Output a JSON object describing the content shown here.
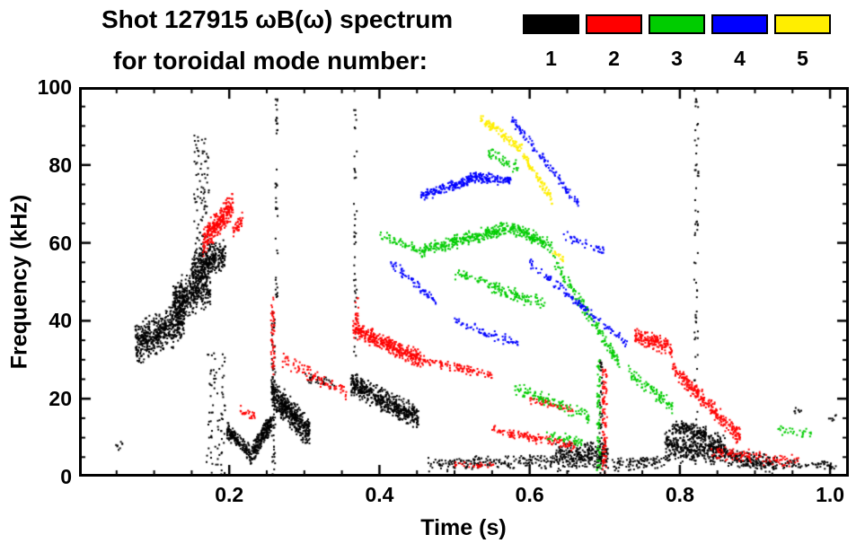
{
  "title": {
    "line1": "Shot 127915 ωB(ω) spectrum",
    "line2": "for toroidal mode number:"
  },
  "legend": [
    {
      "label": "1",
      "color": "#000000"
    },
    {
      "label": "2",
      "color": "#ff0000"
    },
    {
      "label": "3",
      "color": "#00cc00"
    },
    {
      "label": "4",
      "color": "#0000ff"
    },
    {
      "label": "5",
      "color": "#ffee00"
    }
  ],
  "chart_data": {
    "type": "scatter",
    "title": "Shot 127915 ωB(ω) spectrum for toroidal mode number: 1-5",
    "xlabel": "Time (s)",
    "ylabel": "Frequency (kHz)",
    "xlim": [
      0.0,
      1.025
    ],
    "ylim": [
      0,
      100
    ],
    "xticks": [
      0.2,
      0.4,
      0.6,
      0.8,
      1.0
    ],
    "xtick_labels": [
      "0.2",
      "0.4",
      "0.6",
      "0.8",
      "1.0"
    ],
    "yticks": [
      0,
      20,
      40,
      60,
      80,
      100
    ],
    "ytick_labels": [
      "0",
      "20",
      "40",
      "60",
      "80",
      "100"
    ],
    "minor_tick_x": 0.05,
    "minor_tick_y": 5,
    "grid": false,
    "legend_position": "top-right",
    "series": [
      {
        "name": "toroidal mode 1",
        "toroidal_mode_number": 1,
        "color": "#000000",
        "clusters": [
          {
            "shape": "band",
            "t0": 0.075,
            "t1": 0.14,
            "f0": 34,
            "f1": 40,
            "sf": 12,
            "n": 520
          },
          {
            "shape": "band",
            "t0": 0.125,
            "t1": 0.175,
            "f0": 44,
            "f1": 50,
            "sf": 13,
            "n": 480
          },
          {
            "shape": "band",
            "t0": 0.15,
            "t1": 0.195,
            "f0": 54,
            "f1": 57,
            "sf": 9,
            "n": 300
          },
          {
            "shape": "vline",
            "t0": 0.163,
            "st": 0.02,
            "f0": 58,
            "f1": 88,
            "n": 90
          },
          {
            "shape": "vline",
            "t0": 0.182,
            "st": 0.025,
            "f0": 0,
            "f1": 32,
            "n": 80
          },
          {
            "shape": "band",
            "t0": 0.048,
            "t1": 0.058,
            "f0": 8,
            "f1": 8,
            "sf": 3,
            "n": 8
          },
          {
            "shape": "band",
            "t0": 0.197,
            "t1": 0.227,
            "f0": 12,
            "f1": 6,
            "sf": 5,
            "n": 150
          },
          {
            "shape": "band",
            "t0": 0.227,
            "t1": 0.256,
            "f0": 5,
            "f1": 14,
            "sf": 6,
            "n": 240
          },
          {
            "shape": "band",
            "t0": 0.256,
            "t1": 0.307,
            "f0": 22,
            "f1": 11,
            "sf": 9,
            "n": 460
          },
          {
            "shape": "vline",
            "t0": 0.259,
            "st": 0.005,
            "f0": 0,
            "f1": 46,
            "n": 70
          },
          {
            "shape": "vline",
            "t0": 0.263,
            "st": 0.003,
            "f0": 46,
            "f1": 99,
            "n": 40
          },
          {
            "shape": "band",
            "t0": 0.3,
            "t1": 0.345,
            "f0": 26,
            "f1": 23,
            "sf": 3,
            "n": 35
          },
          {
            "shape": "band",
            "t0": 0.362,
            "t1": 0.452,
            "f0": 24,
            "f1": 15,
            "sf": 7,
            "n": 500
          },
          {
            "shape": "vline",
            "t0": 0.368,
            "st": 0.004,
            "f0": 25,
            "f1": 100,
            "n": 45
          },
          {
            "shape": "band",
            "t0": 0.465,
            "t1": 0.63,
            "f0": 3,
            "f1": 4,
            "sf": 4,
            "n": 190
          },
          {
            "shape": "band",
            "t0": 0.63,
            "t1": 0.705,
            "f0": 5,
            "f1": 6,
            "sf": 8,
            "n": 300
          },
          {
            "shape": "vline",
            "t0": 0.695,
            "st": 0.004,
            "f0": 0,
            "f1": 30,
            "n": 45
          },
          {
            "shape": "band",
            "t0": 0.71,
            "t1": 0.78,
            "f0": 3,
            "f1": 4,
            "sf": 4,
            "n": 90
          },
          {
            "shape": "band",
            "t0": 0.79,
            "t1": 0.835,
            "f0": 13,
            "f1": 11,
            "sf": 4,
            "n": 130
          },
          {
            "shape": "band",
            "t0": 0.78,
            "t1": 0.86,
            "f0": 8,
            "f1": 7,
            "sf": 9,
            "n": 440
          },
          {
            "shape": "band",
            "t0": 0.86,
            "t1": 0.93,
            "f0": 5,
            "f1": 3,
            "sf": 5,
            "n": 200
          },
          {
            "shape": "vline",
            "t0": 0.822,
            "st": 0.006,
            "f0": 14,
            "f1": 100,
            "n": 60
          },
          {
            "shape": "band",
            "t0": 0.935,
            "t1": 1.01,
            "f0": 3,
            "f1": 3,
            "sf": 3,
            "n": 60
          },
          {
            "shape": "band",
            "t0": 0.952,
            "t1": 0.962,
            "f0": 17,
            "f1": 17,
            "sf": 2,
            "n": 8
          },
          {
            "shape": "band",
            "t0": 0.998,
            "t1": 1.008,
            "f0": 15,
            "f1": 15,
            "sf": 2,
            "n": 7
          }
        ]
      },
      {
        "name": "toroidal mode 2",
        "toroidal_mode_number": 2,
        "color": "#ff0000",
        "clusters": [
          {
            "shape": "band",
            "t0": 0.165,
            "t1": 0.205,
            "f0": 60,
            "f1": 70,
            "sf": 8,
            "n": 280
          },
          {
            "shape": "band",
            "t0": 0.205,
            "t1": 0.218,
            "f0": 63,
            "f1": 66,
            "sf": 4,
            "n": 40
          },
          {
            "shape": "band",
            "t0": 0.215,
            "t1": 0.235,
            "f0": 17,
            "f1": 15,
            "sf": 3,
            "n": 25
          },
          {
            "shape": "vline",
            "t0": 0.258,
            "st": 0.005,
            "f0": 26,
            "f1": 46,
            "n": 50
          },
          {
            "shape": "band",
            "t0": 0.27,
            "t1": 0.36,
            "f0": 30,
            "f1": 21,
            "sf": 4,
            "n": 90
          },
          {
            "shape": "band",
            "t0": 0.365,
            "t1": 0.455,
            "f0": 38,
            "f1": 30,
            "sf": 5,
            "n": 380
          },
          {
            "shape": "vline",
            "t0": 0.37,
            "st": 0.004,
            "f0": 39,
            "f1": 46,
            "n": 18
          },
          {
            "shape": "band",
            "t0": 0.455,
            "t1": 0.55,
            "f0": 30,
            "f1": 26,
            "sf": 3,
            "n": 110
          },
          {
            "shape": "band",
            "t0": 0.55,
            "t1": 0.66,
            "f0": 12,
            "f1": 8,
            "sf": 3,
            "n": 130
          },
          {
            "shape": "band",
            "t0": 0.6,
            "t1": 0.66,
            "f0": 20,
            "f1": 17,
            "sf": 3,
            "n": 50
          },
          {
            "shape": "band",
            "t0": 0.5,
            "t1": 0.555,
            "f0": 3,
            "f1": 3,
            "sf": 2,
            "n": 30
          },
          {
            "shape": "vline",
            "t0": 0.7,
            "st": 0.006,
            "f0": 0,
            "f1": 28,
            "n": 90
          },
          {
            "shape": "band",
            "t0": 0.74,
            "t1": 0.79,
            "f0": 36,
            "f1": 33,
            "sf": 5,
            "n": 160
          },
          {
            "shape": "band",
            "t0": 0.79,
            "t1": 0.88,
            "f0": 28,
            "f1": 10,
            "sf": 5,
            "n": 260
          },
          {
            "shape": "band",
            "t0": 0.84,
            "t1": 0.96,
            "f0": 6,
            "f1": 4,
            "sf": 4,
            "n": 110
          }
        ]
      },
      {
        "name": "toroidal mode 3",
        "toroidal_mode_number": 3,
        "color": "#00cc00",
        "clusters": [
          {
            "shape": "band",
            "t0": 0.455,
            "t1": 0.575,
            "f0": 58,
            "f1": 64,
            "sf": 4,
            "n": 300
          },
          {
            "shape": "band",
            "t0": 0.575,
            "t1": 0.63,
            "f0": 64,
            "f1": 59,
            "sf": 4,
            "n": 150
          },
          {
            "shape": "band",
            "t0": 0.63,
            "t1": 0.72,
            "f0": 56,
            "f1": 29,
            "sf": 4,
            "n": 160
          },
          {
            "shape": "band",
            "t0": 0.4,
            "t1": 0.455,
            "f0": 62,
            "f1": 58,
            "sf": 3,
            "n": 55
          },
          {
            "shape": "band",
            "t0": 0.545,
            "t1": 0.62,
            "f0": 49,
            "f1": 44,
            "sf": 4,
            "n": 110
          },
          {
            "shape": "band",
            "t0": 0.5,
            "t1": 0.545,
            "f0": 52,
            "f1": 50,
            "sf": 3,
            "n": 40
          },
          {
            "shape": "band",
            "t0": 0.545,
            "t1": 0.585,
            "f0": 83,
            "f1": 79,
            "sf": 4,
            "n": 45
          },
          {
            "shape": "vline",
            "t0": 0.692,
            "st": 0.005,
            "f0": 0,
            "f1": 30,
            "n": 70
          },
          {
            "shape": "band",
            "t0": 0.58,
            "t1": 0.68,
            "f0": 23,
            "f1": 15,
            "sf": 4,
            "n": 110
          },
          {
            "shape": "band",
            "t0": 0.73,
            "t1": 0.79,
            "f0": 27,
            "f1": 18,
            "sf": 4,
            "n": 90
          },
          {
            "shape": "band",
            "t0": 0.62,
            "t1": 0.67,
            "f0": 11,
            "f1": 9,
            "sf": 3,
            "n": 45
          },
          {
            "shape": "band",
            "t0": 0.93,
            "t1": 0.975,
            "f0": 12,
            "f1": 11,
            "sf": 3,
            "n": 30
          }
        ]
      },
      {
        "name": "toroidal mode 4",
        "toroidal_mode_number": 4,
        "color": "#0000ff",
        "clusters": [
          {
            "shape": "band",
            "t0": 0.455,
            "t1": 0.52,
            "f0": 72,
            "f1": 76,
            "sf": 3,
            "n": 160
          },
          {
            "shape": "band",
            "t0": 0.52,
            "t1": 0.575,
            "f0": 77,
            "f1": 76,
            "sf": 3,
            "n": 140
          },
          {
            "shape": "band",
            "t0": 0.575,
            "t1": 0.665,
            "f0": 92,
            "f1": 70,
            "sf": 3,
            "n": 110
          },
          {
            "shape": "band",
            "t0": 0.6,
            "t1": 0.73,
            "f0": 55,
            "f1": 34,
            "sf": 3,
            "n": 130
          },
          {
            "shape": "band",
            "t0": 0.415,
            "t1": 0.475,
            "f0": 55,
            "f1": 45,
            "sf": 3,
            "n": 70
          },
          {
            "shape": "band",
            "t0": 0.5,
            "t1": 0.585,
            "f0": 40,
            "f1": 34,
            "sf": 3,
            "n": 70
          },
          {
            "shape": "band",
            "t0": 0.645,
            "t1": 0.7,
            "f0": 62,
            "f1": 58,
            "sf": 3,
            "n": 40
          }
        ]
      },
      {
        "name": "toroidal mode 5",
        "toroidal_mode_number": 5,
        "color": "#ffee00",
        "clusters": [
          {
            "shape": "band",
            "t0": 0.535,
            "t1": 0.59,
            "f0": 92,
            "f1": 84,
            "sf": 3,
            "n": 110
          },
          {
            "shape": "band",
            "t0": 0.59,
            "t1": 0.63,
            "f0": 83,
            "f1": 71,
            "sf": 3,
            "n": 80
          },
          {
            "shape": "band",
            "t0": 0.63,
            "t1": 0.645,
            "f0": 58,
            "f1": 56,
            "sf": 2,
            "n": 16
          }
        ]
      }
    ]
  }
}
